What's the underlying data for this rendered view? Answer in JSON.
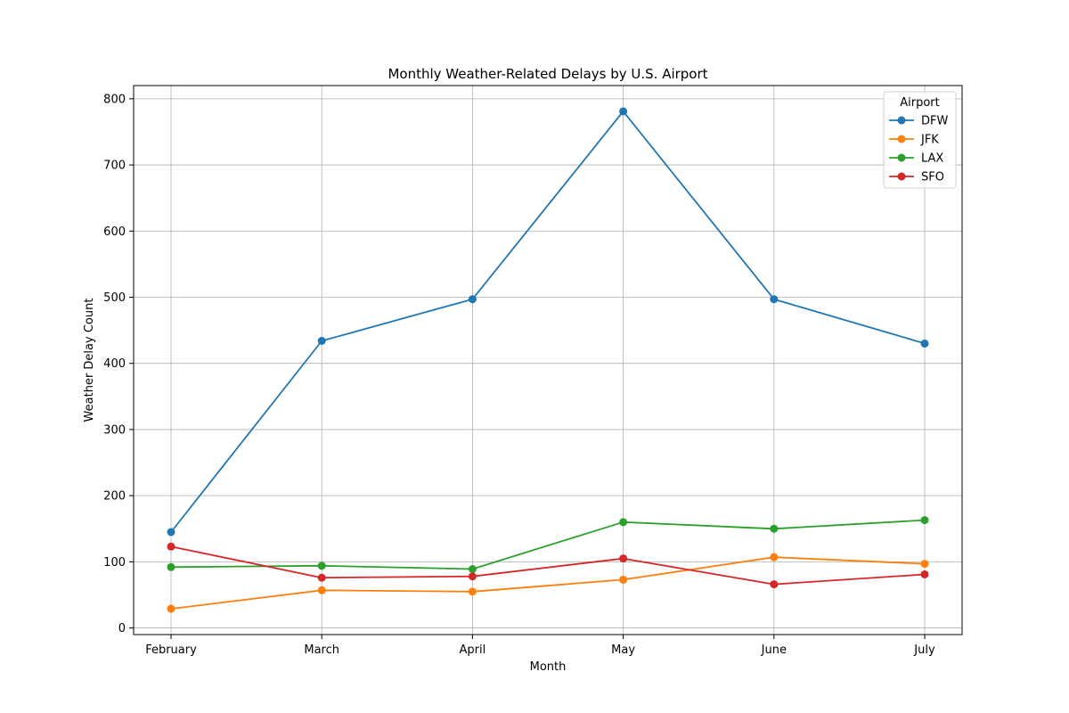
{
  "chart_data": {
    "type": "line",
    "title": "Monthly Weather-Related Delays by U.S. Airport",
    "xlabel": "Month",
    "ylabel": "Weather Delay Count",
    "categories": [
      "February",
      "March",
      "April",
      "May",
      "June",
      "July"
    ],
    "ylim": [
      -10,
      820
    ],
    "yticks": [
      0,
      100,
      200,
      300,
      400,
      500,
      600,
      700,
      800
    ],
    "grid": true,
    "legend": {
      "title": "Airport",
      "placement": "top-right"
    },
    "series": [
      {
        "name": "DFW",
        "color": "#1f77b4",
        "values": [
          145,
          434,
          497,
          781,
          497,
          430
        ]
      },
      {
        "name": "JFK",
        "color": "#ff7f0e",
        "values": [
          29,
          57,
          55,
          73,
          107,
          97
        ]
      },
      {
        "name": "LAX",
        "color": "#2ca02c",
        "values": [
          92,
          94,
          89,
          160,
          150,
          163
        ]
      },
      {
        "name": "SFO",
        "color": "#d62728",
        "values": [
          123,
          76,
          78,
          105,
          66,
          81
        ]
      }
    ]
  }
}
